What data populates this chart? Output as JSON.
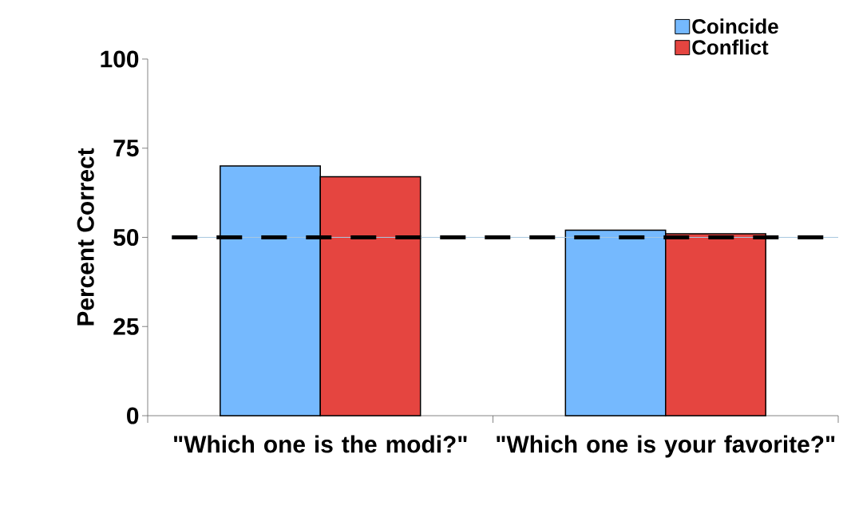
{
  "chart_data": {
    "type": "bar",
    "ylabel": "Percent Correct",
    "categories": [
      "\"Which one is the modi?\"",
      "\"Which one is your favorite?\""
    ],
    "series": [
      {
        "name": "Coincide",
        "color": "#75b9fe",
        "values": [
          70,
          52
        ]
      },
      {
        "name": "Conflict",
        "color": "#e54540",
        "values": [
          67,
          51
        ]
      }
    ],
    "ylim": [
      0,
      100
    ],
    "yticks": [
      0,
      25,
      50,
      75,
      100
    ],
    "ref_lines": [
      {
        "axis": "y",
        "value": 50,
        "color": "#a8c8e0",
        "line_style": "solid"
      },
      {
        "axis": "y",
        "value": 50,
        "color": "#000000",
        "line_style": "dashed"
      }
    ],
    "legend": "top right",
    "grid": false
  }
}
